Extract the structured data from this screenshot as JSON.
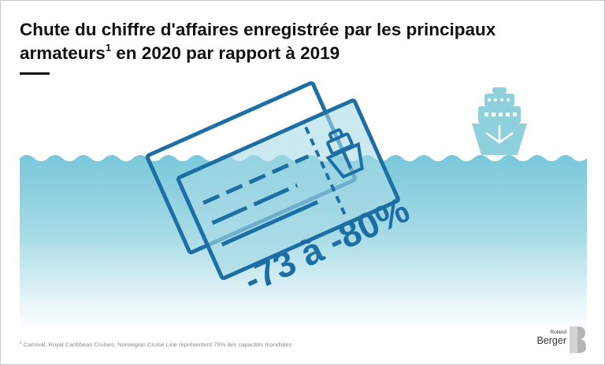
{
  "title": {
    "line1": "Chute du chiffre d'affaires enregistrée par les principaux",
    "line2_prefix": "armateurs",
    "line2_superscript": "1",
    "line2_suffix": " en 2020 par rapport à 2019"
  },
  "highlight": {
    "value": "-73 à -80%"
  },
  "footnote": {
    "marker": "1",
    "text": " Carnival, Royal Caribbean Cruises, Norwegian Cruise Line représentent 75% des capacités mondiales"
  },
  "logo": {
    "line1": "Roland",
    "line2": "Berger"
  },
  "colors": {
    "water_top": "#7ecbdc",
    "water_bottom": "#ffffff",
    "ticket_stroke": "#1d6ea4",
    "ship_fill": "#8fd0dd",
    "title": "#111111"
  },
  "icons": [
    "cruise-ship-icon",
    "ticket-icon",
    "roland-berger-logo-icon"
  ]
}
